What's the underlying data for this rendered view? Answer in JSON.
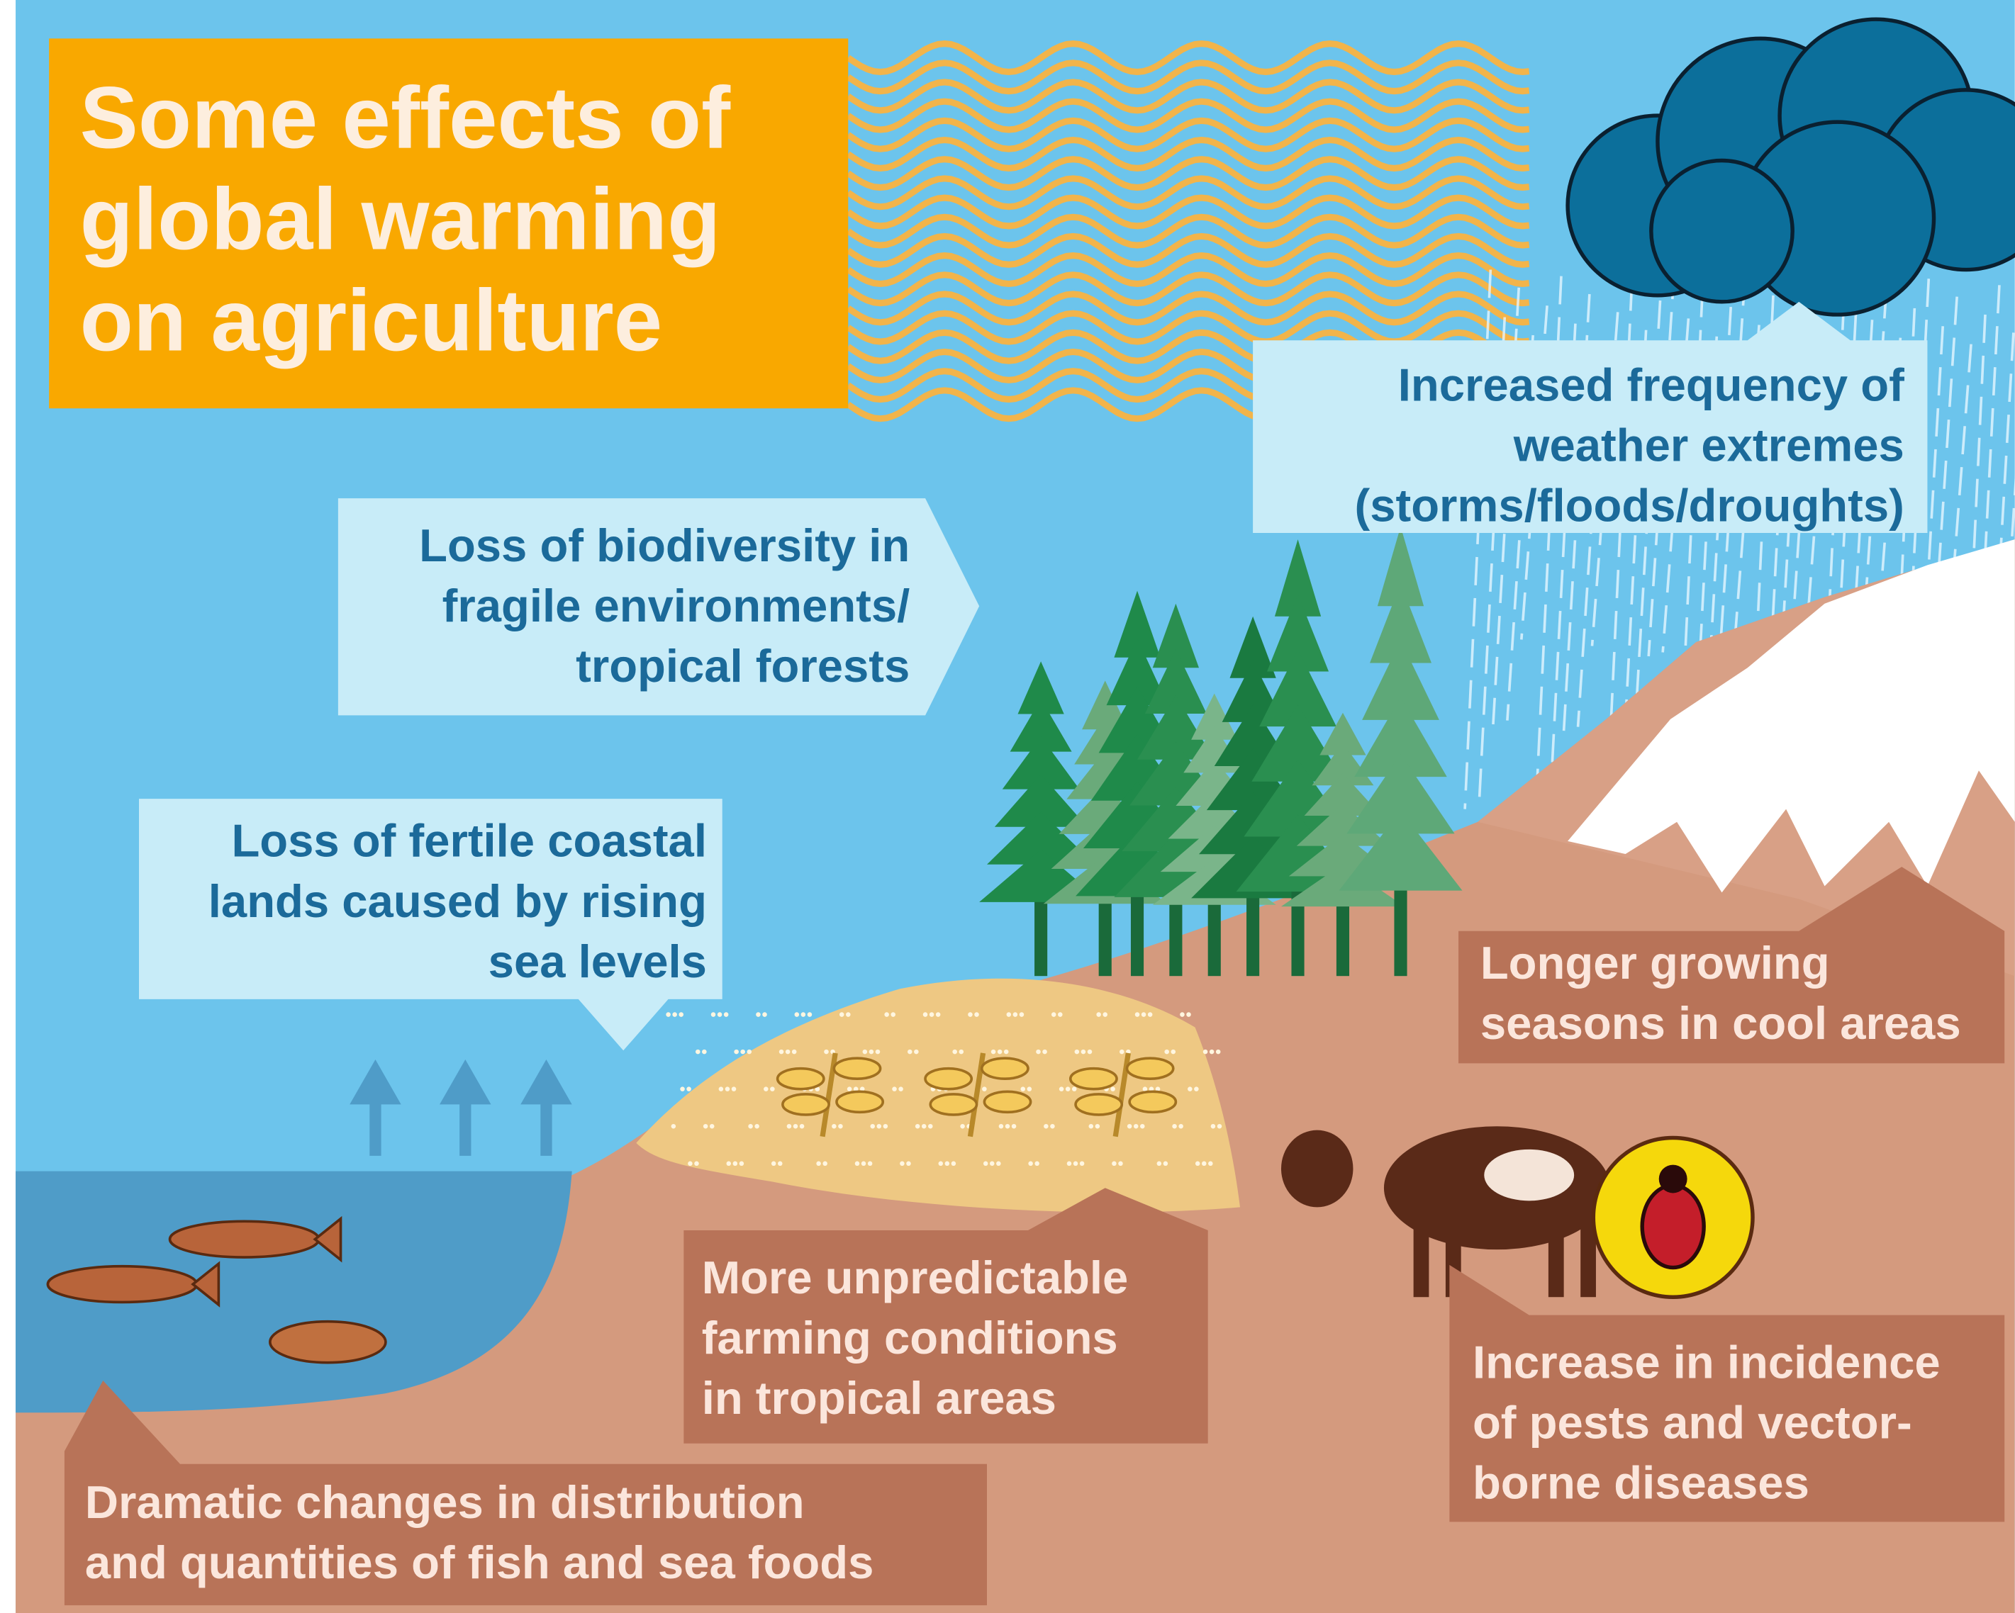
{
  "title": [
    "Some effects of",
    "global warming",
    "on agriculture"
  ],
  "callouts": [
    {
      "lines": [
        "Increased frequency of",
        "weather extremes",
        "(storms/floods/droughts)"
      ]
    },
    {
      "lines": [
        "Loss of biodiversity in",
        "fragile environments/",
        "tropical forests"
      ]
    },
    {
      "lines": [
        "Loss of fertile coastal",
        "lands caused by rising",
        "sea levels"
      ]
    },
    {
      "lines": [
        "Longer growing",
        "seasons in cool areas"
      ]
    },
    {
      "lines": [
        "More unpredictable",
        "farming conditions",
        "in tropical areas"
      ]
    },
    {
      "lines": [
        "Increase in incidence",
        "of pests and vector-",
        "borne diseases"
      ]
    },
    {
      "lines": [
        "Dramatic changes in distribution",
        "and quantities of fish and sea foods"
      ]
    }
  ]
}
